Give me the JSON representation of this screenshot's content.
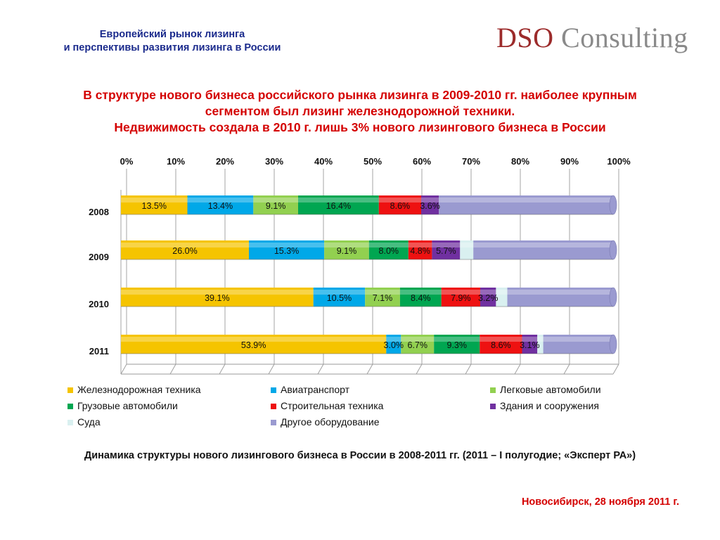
{
  "header": {
    "title_line1": "Европейский рынок лизинга",
    "title_line2": "и перспективы развития лизинга в России",
    "logo_dso": "DSO",
    "logo_consulting": "Consulting"
  },
  "headline": {
    "line1": "В структуре нового бизнеса российского рынка лизинга в 2009-2010 гг. наиболее крупным",
    "line2": "сегментом был лизинг железнодорожной техники.",
    "line3": "Недвижимость создала в 2010 г. лишь 3% нового лизингового бизнеса в России"
  },
  "chart_data": {
    "type": "bar",
    "orientation": "horizontal",
    "stacked": "percent",
    "categories": [
      "2008",
      "2009",
      "2010",
      "2011"
    ],
    "x_ticks": [
      "0%",
      "10%",
      "20%",
      "30%",
      "40%",
      "50%",
      "60%",
      "70%",
      "80%",
      "90%",
      "100%"
    ],
    "xlim": [
      0,
      100
    ],
    "legend_position": "bottom",
    "series": [
      {
        "name": "Железнодорожная техника",
        "color": "#f5c400",
        "values": [
          13.5,
          26.0,
          39.1,
          53.9
        ],
        "labels": [
          "13.5%",
          "26.0%",
          "39.1%",
          "53.9%"
        ]
      },
      {
        "name": "Авиатранспорт",
        "color": "#00a8e8",
        "values": [
          13.4,
          15.3,
          10.5,
          3.0
        ],
        "labels": [
          "13.4%",
          "15.3%",
          "10.5%",
          "3.0%"
        ]
      },
      {
        "name": "Легковые автомобили",
        "color": "#92d050",
        "values": [
          9.1,
          9.1,
          7.1,
          6.7
        ],
        "labels": [
          "9.1%",
          "9.1%",
          "7.1%",
          "6.7%"
        ]
      },
      {
        "name": "Грузовые автомобили",
        "color": "#00a651",
        "values": [
          16.4,
          8.0,
          8.4,
          9.3
        ],
        "labels": [
          "16.4%",
          "8.0%",
          "8.4%",
          "9.3%"
        ]
      },
      {
        "name": "Строительная техника",
        "color": "#ee1111",
        "values": [
          8.6,
          4.8,
          7.9,
          8.6
        ],
        "labels": [
          "8.6%",
          "4.8%",
          "7.9%",
          "8.6%"
        ]
      },
      {
        "name": "Здания и сооружения",
        "color": "#7030a0",
        "values": [
          3.6,
          5.7,
          3.2,
          3.1
        ],
        "labels": [
          "3.6%",
          "5.7%",
          "3.2%",
          "3.1%"
        ]
      },
      {
        "name": "Суда",
        "color": "#d9f0f0",
        "values": [
          0,
          2.7,
          2.3,
          1.2
        ],
        "labels": [
          "",
          "",
          "",
          ""
        ]
      },
      {
        "name": "Другое оборудование",
        "color": "#9a9ad0",
        "values": [
          35.4,
          28.4,
          21.5,
          14.2
        ],
        "labels": [
          "",
          "",
          "",
          ""
        ]
      }
    ]
  },
  "caption": "Динамика структуры нового лизингового бизнеса в России в 2008-2011 гг. (2011 – I полугодие; «Эксперт РА»)",
  "footer": "Новосибирск, 28 ноября 2011 г."
}
